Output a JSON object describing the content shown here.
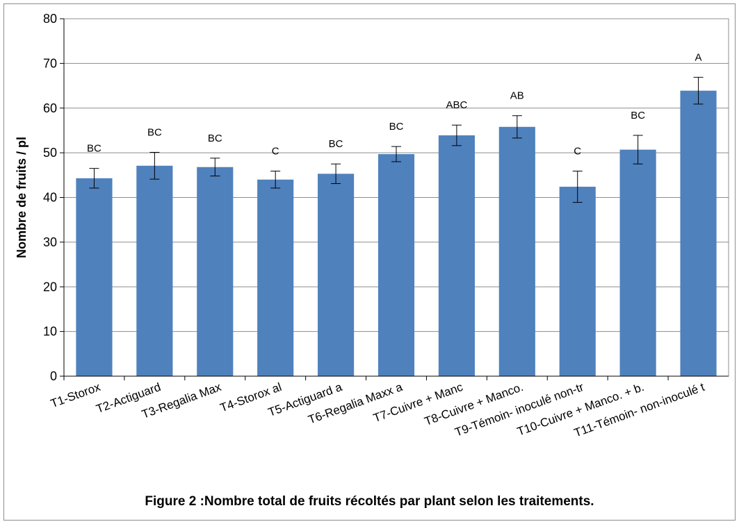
{
  "caption": "Figure 2 :Nombre total de fruits récoltés par plant selon les traitements.",
  "chart_data": {
    "type": "bar",
    "title": "",
    "xlabel": "",
    "ylabel": "Nombre de fruits / pl",
    "ylim": [
      0,
      80
    ],
    "yticks": [
      0,
      10,
      20,
      30,
      40,
      50,
      60,
      70,
      80
    ],
    "grid": true,
    "bar_color": "#4f81bd",
    "categories": [
      "T1-Storox",
      "T2-Actiguard",
      "T3-Regalia Max",
      "T4-Storox al",
      "T5-Actiguard a",
      "T6-Regalia Maxx a",
      "T7-Cuivre + Manc",
      "T8-Cuivre + Manco.",
      "T9-Témoin- inoculé non-tr",
      "T10-Cuivre + Manco. + b.",
      "T11-Témoin- non-inoculé t"
    ],
    "values": [
      44.3,
      47.1,
      46.8,
      44.0,
      45.3,
      49.7,
      53.9,
      55.8,
      42.4,
      50.7,
      63.9
    ],
    "error": [
      2.2,
      3.0,
      2.0,
      1.9,
      2.2,
      1.7,
      2.3,
      2.5,
      3.5,
      3.2,
      3.0
    ],
    "letters": [
      "BC",
      "BC",
      "BC",
      "C",
      "BC",
      "BC",
      "ABC",
      "AB",
      "C",
      "BC",
      "A"
    ]
  }
}
